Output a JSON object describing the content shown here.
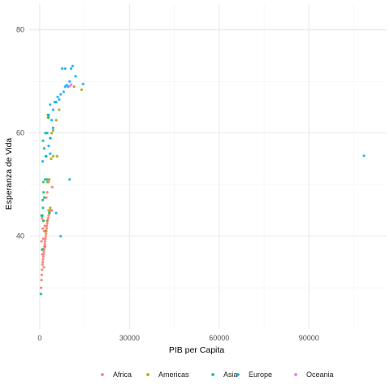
{
  "chart_data": {
    "type": "scatter",
    "xlabel": "PIB per Capita",
    "ylabel": "Esperanza de Vida",
    "xlim": [
      -3500,
      116000
    ],
    "ylim": [
      22,
      85
    ],
    "x_ticks": [
      0,
      30000,
      60000,
      90000
    ],
    "x_tick_labels": [
      "0",
      "30000",
      "60000",
      "90000"
    ],
    "y_ticks": [
      40,
      60,
      80
    ],
    "y_tick_labels": [
      "40",
      "60",
      "80"
    ],
    "grid": true,
    "legend_position": "bottom",
    "series": [
      {
        "name": "Africa",
        "color": "#F8766D",
        "points": [
          [
            500,
            30.0
          ],
          [
            600,
            31.5
          ],
          [
            700,
            32.5
          ],
          [
            800,
            33.5
          ],
          [
            900,
            34.5
          ],
          [
            1000,
            35.0
          ],
          [
            1100,
            35.5
          ],
          [
            1200,
            36.0
          ],
          [
            1300,
            36.5
          ],
          [
            1400,
            37.0
          ],
          [
            1500,
            37.5
          ],
          [
            1600,
            38.0
          ],
          [
            1700,
            38.5
          ],
          [
            1800,
            39.0
          ],
          [
            1900,
            39.5
          ],
          [
            2000,
            40.0
          ],
          [
            2100,
            40.5
          ],
          [
            2200,
            41.0
          ],
          [
            2300,
            41.5
          ],
          [
            2400,
            42.0
          ],
          [
            2500,
            42.5
          ],
          [
            2600,
            43.0
          ],
          [
            2800,
            43.5
          ],
          [
            3000,
            44.0
          ],
          [
            3300,
            44.5
          ],
          [
            3600,
            45.0
          ],
          [
            4000,
            45.0
          ],
          [
            800,
            43.5
          ],
          [
            1000,
            41.5
          ],
          [
            1200,
            39.5
          ],
          [
            1500,
            41.0
          ],
          [
            1800,
            38.0
          ],
          [
            900,
            36.5
          ],
          [
            1100,
            37.5
          ],
          [
            1300,
            43.0
          ],
          [
            1700,
            42.0
          ],
          [
            2200,
            47.5
          ],
          [
            2500,
            48.5
          ],
          [
            3000,
            50.5
          ],
          [
            4200,
            49.5
          ],
          [
            600,
            39.0
          ],
          [
            1400,
            34.0
          ]
        ]
      },
      {
        "name": "Americas",
        "color": "#A3A500",
        "points": [
          [
            2000,
            41.0
          ],
          [
            2500,
            43.0
          ],
          [
            3000,
            45.0
          ],
          [
            3500,
            45.5
          ],
          [
            3200,
            51.0
          ],
          [
            2500,
            50.5
          ],
          [
            3800,
            55.0
          ],
          [
            4500,
            55.5
          ],
          [
            5800,
            55.5
          ],
          [
            3600,
            59.0
          ],
          [
            4500,
            60.5
          ],
          [
            5500,
            62.5
          ],
          [
            6500,
            64.5
          ],
          [
            2700,
            63.5
          ],
          [
            3000,
            63.0
          ],
          [
            4000,
            60.0
          ],
          [
            13990,
            68.4
          ],
          [
            11500,
            69.0
          ]
        ]
      },
      {
        "name": "Asia",
        "color": "#00BF7D",
        "points": [
          [
            400,
            28.8
          ],
          [
            800,
            37.4
          ],
          [
            900,
            44.0
          ],
          [
            600,
            44.0
          ],
          [
            1200,
            43.0
          ],
          [
            1100,
            45.5
          ],
          [
            1000,
            47.0
          ],
          [
            1500,
            47.5
          ],
          [
            1200,
            50.5
          ],
          [
            1800,
            51.0
          ],
          [
            2500,
            51.0
          ],
          [
            3200,
            44.5
          ],
          [
            2200,
            55.5
          ],
          [
            1500,
            57.0
          ],
          [
            1100,
            58.5
          ],
          [
            2800,
            63.0
          ],
          [
            1900,
            60.0
          ],
          [
            1300,
            48.5
          ]
        ]
      },
      {
        "name": "Europe",
        "color": "#00B0F6",
        "points": [
          [
            7000,
            40.0
          ],
          [
            1000,
            54.5
          ],
          [
            3000,
            57.5
          ],
          [
            2500,
            60.0
          ],
          [
            3500,
            59.0
          ],
          [
            4000,
            62.5
          ],
          [
            3500,
            65.5
          ],
          [
            4500,
            64.5
          ],
          [
            5000,
            66.0
          ],
          [
            5500,
            66.0
          ],
          [
            6000,
            67.0
          ],
          [
            6500,
            66.5
          ],
          [
            7000,
            67.5
          ],
          [
            8000,
            68.0
          ],
          [
            8500,
            69.0
          ],
          [
            9000,
            69.3
          ],
          [
            9500,
            69.0
          ],
          [
            10000,
            70.0
          ],
          [
            10500,
            72.5
          ],
          [
            11000,
            73.0
          ],
          [
            7500,
            72.5
          ],
          [
            8500,
            72.5
          ],
          [
            12000,
            71.0
          ],
          [
            14500,
            69.5
          ],
          [
            3000,
            63.5
          ],
          [
            2000,
            55.5
          ],
          [
            3500,
            56.0
          ],
          [
            4500,
            61.0
          ],
          [
            10000,
            51.0
          ],
          [
            5500,
            44.5
          ],
          [
            108382,
            55.6
          ]
        ]
      },
      {
        "name": "Oceania",
        "color": "#E76BF3",
        "points": [
          [
            10040,
            69.1
          ],
          [
            10557,
            69.4
          ]
        ]
      }
    ]
  }
}
